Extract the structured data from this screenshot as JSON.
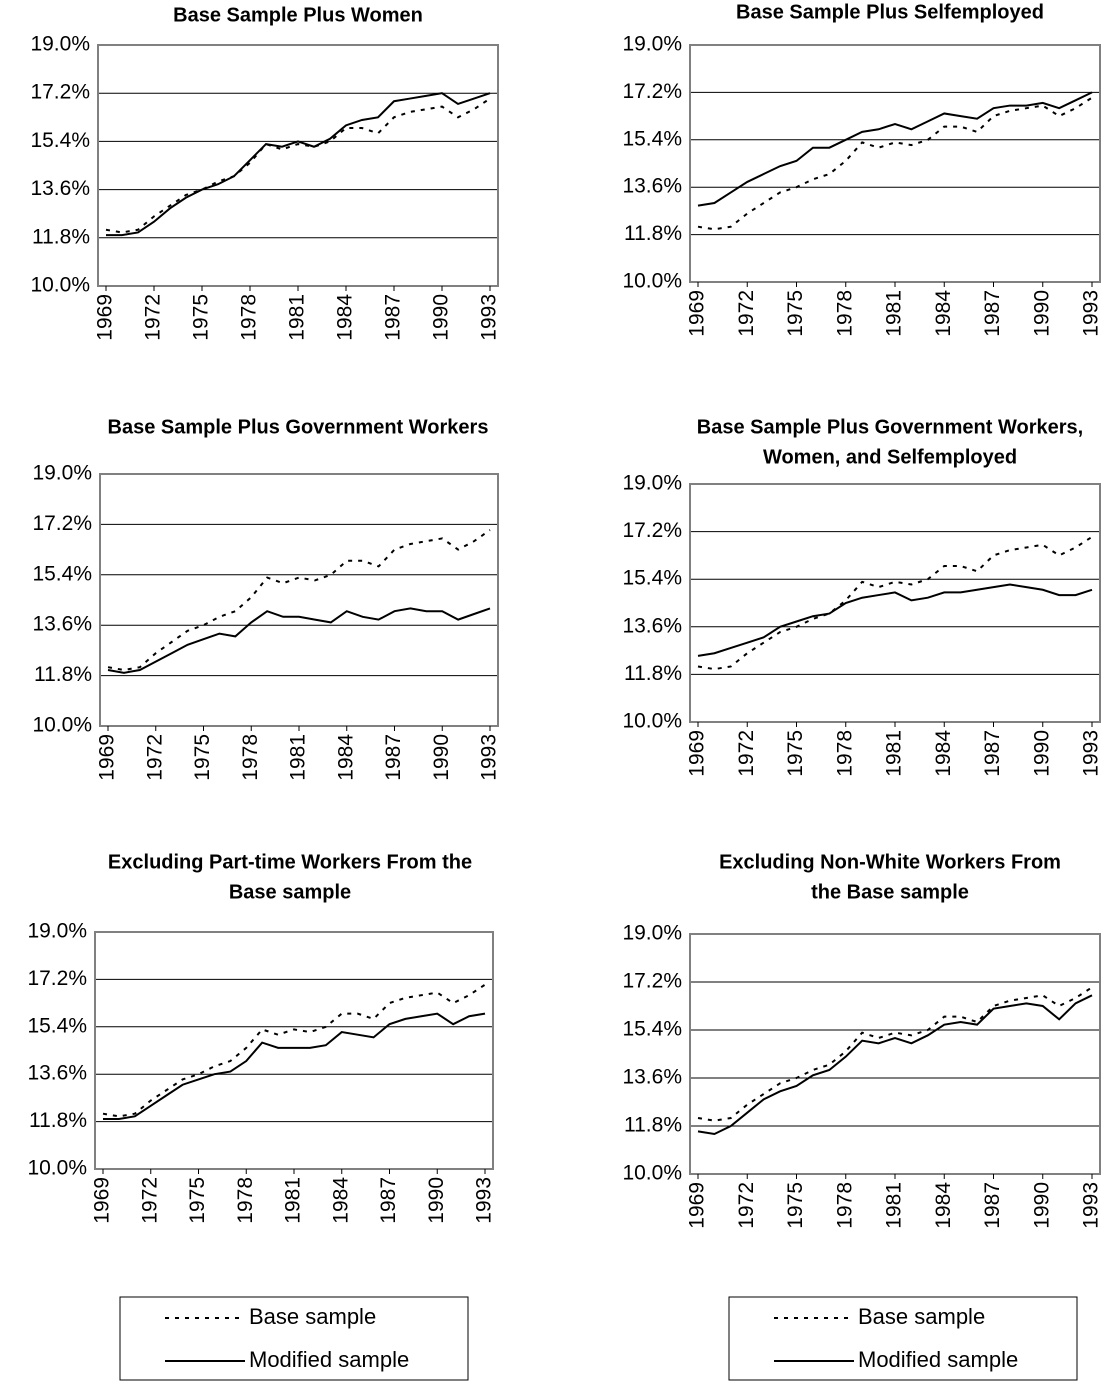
{
  "chart_data": [
    {
      "type": "line",
      "title": [
        "Base Sample Plus Women"
      ],
      "x": [
        1969,
        1970,
        1971,
        1972,
        1973,
        1974,
        1975,
        1976,
        1977,
        1978,
        1979,
        1980,
        1981,
        1982,
        1983,
        1984,
        1985,
        1986,
        1987,
        1988,
        1989,
        1990,
        1991,
        1992,
        1993
      ],
      "xlim": [
        1969,
        1993
      ],
      "xticks": [
        1969,
        1972,
        1975,
        1978,
        1981,
        1984,
        1987,
        1990,
        1993
      ],
      "ylim": [
        10,
        19
      ],
      "yticks": [
        {
          "value": 10,
          "label": "10.0%"
        },
        {
          "value": 11.8,
          "label": "11.8%"
        },
        {
          "value": 13.6,
          "label": "13.6%"
        },
        {
          "value": 15.4,
          "label": "15.4%"
        },
        {
          "value": 17.2,
          "label": "17.2%"
        },
        {
          "value": 19,
          "label": "19.0%"
        }
      ],
      "grid": true,
      "series": [
        {
          "name": "Base sample",
          "color": "#000000",
          "style": "dotted",
          "values": [
            12.1,
            12.0,
            12.1,
            12.6,
            13.0,
            13.4,
            13.6,
            13.9,
            14.1,
            14.6,
            15.3,
            15.1,
            15.3,
            15.2,
            15.4,
            15.9,
            15.9,
            15.7,
            16.3,
            16.5,
            16.6,
            16.7,
            16.3,
            16.6,
            17.0
          ]
        },
        {
          "name": "Modified sample",
          "color": "#000000",
          "style": "solid",
          "values": [
            11.9,
            11.9,
            12.0,
            12.4,
            12.9,
            13.3,
            13.6,
            13.8,
            14.1,
            14.7,
            15.3,
            15.2,
            15.4,
            15.2,
            15.5,
            16.0,
            16.2,
            16.3,
            16.9,
            17.0,
            17.1,
            17.2,
            16.8,
            17.0,
            17.2
          ]
        }
      ]
    },
    {
      "type": "line",
      "title": [
        "Base Sample Plus Selfemployed"
      ],
      "x": [
        1969,
        1970,
        1971,
        1972,
        1973,
        1974,
        1975,
        1976,
        1977,
        1978,
        1979,
        1980,
        1981,
        1982,
        1983,
        1984,
        1985,
        1986,
        1987,
        1988,
        1989,
        1990,
        1991,
        1992,
        1993
      ],
      "xlim": [
        1969,
        1993
      ],
      "xticks": [
        1969,
        1972,
        1975,
        1978,
        1981,
        1984,
        1987,
        1990,
        1993
      ],
      "ylim": [
        10,
        19
      ],
      "yticks": [
        {
          "value": 10,
          "label": "10.0%"
        },
        {
          "value": 11.8,
          "label": "11.8%"
        },
        {
          "value": 13.6,
          "label": "13.6%"
        },
        {
          "value": 15.4,
          "label": "15.4%"
        },
        {
          "value": 17.2,
          "label": "17.2%"
        },
        {
          "value": 19,
          "label": "19.0%"
        }
      ],
      "grid": true,
      "series": [
        {
          "name": "Base sample",
          "color": "#000000",
          "style": "dotted",
          "values": [
            12.1,
            12.0,
            12.1,
            12.6,
            13.0,
            13.4,
            13.6,
            13.9,
            14.1,
            14.6,
            15.3,
            15.1,
            15.3,
            15.2,
            15.4,
            15.9,
            15.9,
            15.7,
            16.3,
            16.5,
            16.6,
            16.7,
            16.3,
            16.6,
            17.0
          ]
        },
        {
          "name": "Modified sample",
          "color": "#000000",
          "style": "solid",
          "values": [
            12.9,
            13.0,
            13.4,
            13.8,
            14.1,
            14.4,
            14.6,
            15.1,
            15.1,
            15.4,
            15.7,
            15.8,
            16.0,
            15.8,
            16.1,
            16.4,
            16.3,
            16.2,
            16.6,
            16.7,
            16.7,
            16.8,
            16.6,
            16.9,
            17.2
          ]
        }
      ]
    },
    {
      "type": "line",
      "title": [
        "Base Sample Plus Government Workers"
      ],
      "x": [
        1969,
        1970,
        1971,
        1972,
        1973,
        1974,
        1975,
        1976,
        1977,
        1978,
        1979,
        1980,
        1981,
        1982,
        1983,
        1984,
        1985,
        1986,
        1987,
        1988,
        1989,
        1990,
        1991,
        1992,
        1993
      ],
      "xlim": [
        1969,
        1993
      ],
      "xticks": [
        1969,
        1972,
        1975,
        1978,
        1981,
        1984,
        1987,
        1990,
        1993
      ],
      "ylim": [
        10,
        19
      ],
      "yticks": [
        {
          "value": 10,
          "label": "10.0%"
        },
        {
          "value": 11.8,
          "label": "11.8%"
        },
        {
          "value": 13.6,
          "label": "13.6%"
        },
        {
          "value": 15.4,
          "label": "15.4%"
        },
        {
          "value": 17.2,
          "label": "17.2%"
        },
        {
          "value": 19,
          "label": "19.0%"
        }
      ],
      "grid": true,
      "series": [
        {
          "name": "Base sample",
          "color": "#000000",
          "style": "dotted",
          "values": [
            12.1,
            12.0,
            12.1,
            12.6,
            13.0,
            13.4,
            13.6,
            13.9,
            14.1,
            14.6,
            15.3,
            15.1,
            15.3,
            15.2,
            15.4,
            15.9,
            15.9,
            15.7,
            16.3,
            16.5,
            16.6,
            16.7,
            16.3,
            16.6,
            17.0
          ]
        },
        {
          "name": "Modified sample",
          "color": "#000000",
          "style": "solid",
          "values": [
            12.0,
            11.9,
            12.0,
            12.3,
            12.6,
            12.9,
            13.1,
            13.3,
            13.2,
            13.7,
            14.1,
            13.9,
            13.9,
            13.8,
            13.7,
            14.1,
            13.9,
            13.8,
            14.1,
            14.2,
            14.1,
            14.1,
            13.8,
            14.0,
            14.2
          ]
        }
      ]
    },
    {
      "type": "line",
      "title": [
        "Base Sample Plus Government Workers,",
        "Women, and Selfemployed"
      ],
      "x": [
        1969,
        1970,
        1971,
        1972,
        1973,
        1974,
        1975,
        1976,
        1977,
        1978,
        1979,
        1980,
        1981,
        1982,
        1983,
        1984,
        1985,
        1986,
        1987,
        1988,
        1989,
        1990,
        1991,
        1992,
        1993
      ],
      "xlim": [
        1969,
        1993
      ],
      "xticks": [
        1969,
        1972,
        1975,
        1978,
        1981,
        1984,
        1987,
        1990,
        1993
      ],
      "ylim": [
        10,
        19
      ],
      "yticks": [
        {
          "value": 10,
          "label": "10.0%"
        },
        {
          "value": 11.8,
          "label": "11.8%"
        },
        {
          "value": 13.6,
          "label": "13.6%"
        },
        {
          "value": 15.4,
          "label": "15.4%"
        },
        {
          "value": 17.2,
          "label": "17.2%"
        },
        {
          "value": 19,
          "label": "19.0%"
        }
      ],
      "grid": true,
      "series": [
        {
          "name": "Base sample",
          "color": "#000000",
          "style": "dotted",
          "values": [
            12.1,
            12.0,
            12.1,
            12.6,
            13.0,
            13.4,
            13.6,
            13.9,
            14.1,
            14.6,
            15.3,
            15.1,
            15.3,
            15.2,
            15.4,
            15.9,
            15.9,
            15.7,
            16.3,
            16.5,
            16.6,
            16.7,
            16.3,
            16.6,
            17.0
          ]
        },
        {
          "name": "Modified sample",
          "color": "#000000",
          "style": "solid",
          "values": [
            12.5,
            12.6,
            12.8,
            13.0,
            13.2,
            13.6,
            13.8,
            14.0,
            14.1,
            14.5,
            14.7,
            14.8,
            14.9,
            14.6,
            14.7,
            14.9,
            14.9,
            15.0,
            15.1,
            15.2,
            15.1,
            15.0,
            14.8,
            14.8,
            15.0
          ]
        }
      ]
    },
    {
      "type": "line",
      "title": [
        "Excluding Part-time Workers From the",
        "Base sample"
      ],
      "x": [
        1969,
        1970,
        1971,
        1972,
        1973,
        1974,
        1975,
        1976,
        1977,
        1978,
        1979,
        1980,
        1981,
        1982,
        1983,
        1984,
        1985,
        1986,
        1987,
        1988,
        1989,
        1990,
        1991,
        1992,
        1993
      ],
      "xlim": [
        1969,
        1993
      ],
      "xticks": [
        1969,
        1972,
        1975,
        1978,
        1981,
        1984,
        1987,
        1990,
        1993
      ],
      "ylim": [
        10,
        19
      ],
      "yticks": [
        {
          "value": 10,
          "label": "10.0%"
        },
        {
          "value": 11.8,
          "label": "11.8%"
        },
        {
          "value": 13.6,
          "label": "13.6%"
        },
        {
          "value": 15.4,
          "label": "15.4%"
        },
        {
          "value": 17.2,
          "label": "17.2%"
        },
        {
          "value": 19,
          "label": "19.0%"
        }
      ],
      "grid": true,
      "series": [
        {
          "name": "Base sample",
          "color": "#000000",
          "style": "dotted",
          "values": [
            12.1,
            12.0,
            12.1,
            12.6,
            13.0,
            13.4,
            13.6,
            13.9,
            14.1,
            14.6,
            15.3,
            15.1,
            15.3,
            15.2,
            15.4,
            15.9,
            15.9,
            15.7,
            16.3,
            16.5,
            16.6,
            16.7,
            16.3,
            16.6,
            17.0
          ]
        },
        {
          "name": "Modified sample",
          "color": "#000000",
          "style": "solid",
          "values": [
            11.9,
            11.9,
            12.0,
            12.4,
            12.8,
            13.2,
            13.4,
            13.6,
            13.7,
            14.1,
            14.8,
            14.6,
            14.6,
            14.6,
            14.7,
            15.2,
            15.1,
            15.0,
            15.5,
            15.7,
            15.8,
            15.9,
            15.5,
            15.8,
            15.9
          ]
        }
      ]
    },
    {
      "type": "line",
      "title": [
        "Excluding Non-White  Workers From",
        "the Base sample"
      ],
      "x": [
        1969,
        1970,
        1971,
        1972,
        1973,
        1974,
        1975,
        1976,
        1977,
        1978,
        1979,
        1980,
        1981,
        1982,
        1983,
        1984,
        1985,
        1986,
        1987,
        1988,
        1989,
        1990,
        1991,
        1992,
        1993
      ],
      "xlim": [
        1969,
        1993
      ],
      "xticks": [
        1969,
        1972,
        1975,
        1978,
        1981,
        1984,
        1987,
        1990,
        1993
      ],
      "ylim": [
        10,
        19
      ],
      "yticks": [
        {
          "value": 10,
          "label": "10.0%"
        },
        {
          "value": 11.8,
          "label": "11.8%"
        },
        {
          "value": 13.6,
          "label": "13.6%"
        },
        {
          "value": 15.4,
          "label": "15.4%"
        },
        {
          "value": 17.2,
          "label": "17.2%"
        },
        {
          "value": 19,
          "label": "19.0%"
        }
      ],
      "grid": true,
      "series": [
        {
          "name": "Base sample",
          "color": "#000000",
          "style": "dotted",
          "values": [
            12.1,
            12.0,
            12.1,
            12.6,
            13.0,
            13.4,
            13.6,
            13.9,
            14.1,
            14.6,
            15.3,
            15.1,
            15.3,
            15.2,
            15.4,
            15.9,
            15.9,
            15.7,
            16.3,
            16.5,
            16.6,
            16.7,
            16.3,
            16.6,
            17.0
          ]
        },
        {
          "name": "Modified sample",
          "color": "#000000",
          "style": "solid",
          "values": [
            11.6,
            11.5,
            11.8,
            12.3,
            12.8,
            13.1,
            13.3,
            13.7,
            13.9,
            14.4,
            15.0,
            14.9,
            15.1,
            14.9,
            15.2,
            15.6,
            15.7,
            15.6,
            16.2,
            16.3,
            16.4,
            16.3,
            15.8,
            16.4,
            16.7
          ]
        }
      ]
    }
  ]
}
